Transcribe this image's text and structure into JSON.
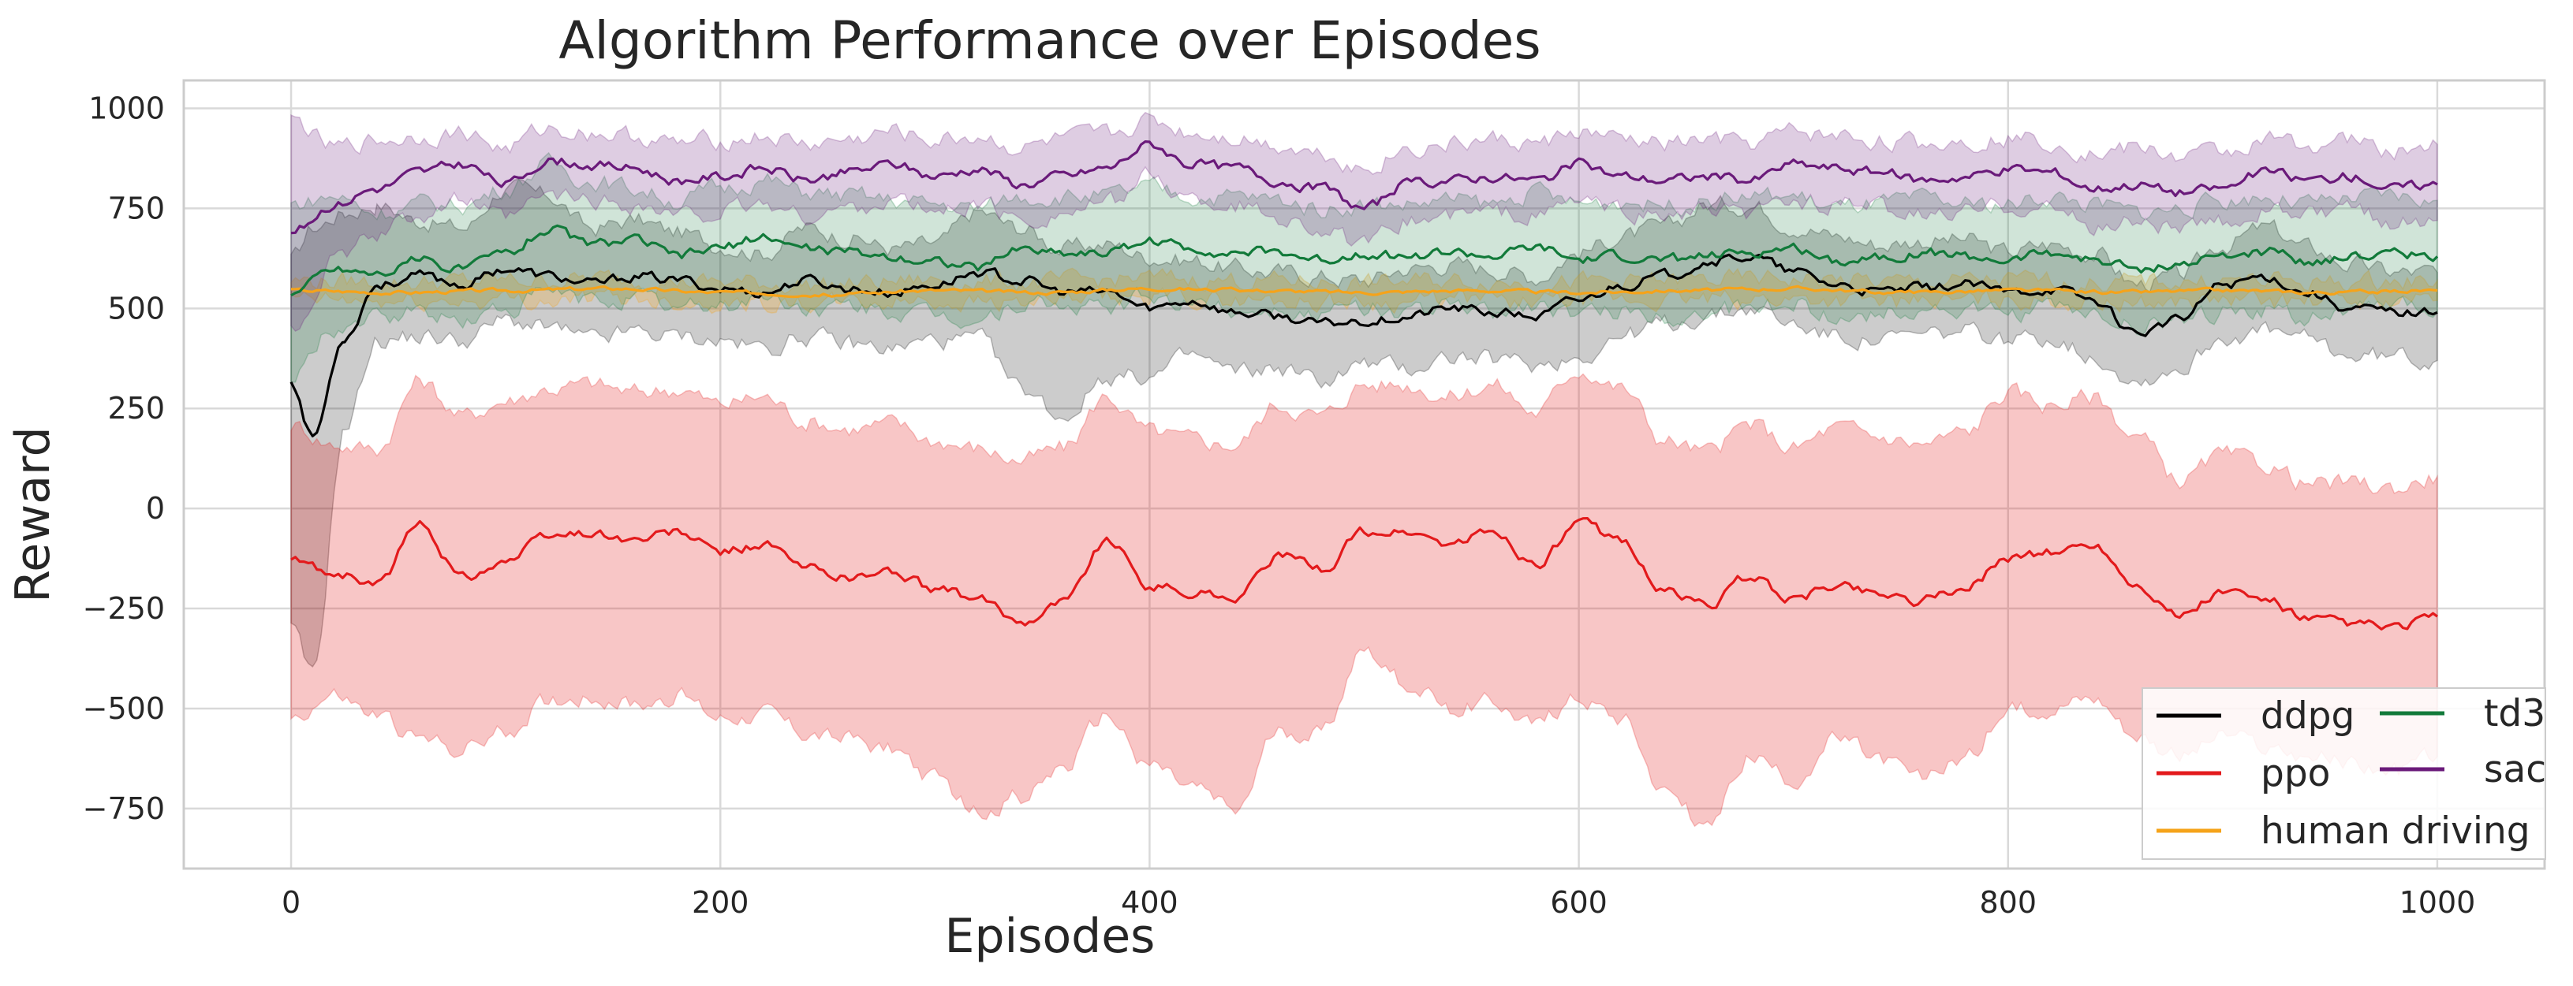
{
  "chart_data": {
    "type": "line",
    "title": "Algorithm Performance over Episodes",
    "xlabel": "Episodes",
    "ylabel": "Reward",
    "xlim": [
      -50,
      1050
    ],
    "ylim": [
      -900,
      1070
    ],
    "xticks": [
      0,
      200,
      400,
      600,
      800,
      1000
    ],
    "yticks": [
      -750,
      -500,
      -250,
      0,
      250,
      500,
      750,
      1000
    ],
    "xtick_labels": [
      "0",
      "200",
      "400",
      "600",
      "800",
      "1000"
    ],
    "ytick_labels": [
      "−750",
      "−500",
      "−250",
      "0",
      "250",
      "500",
      "750",
      "1000"
    ],
    "grid": true,
    "legend_position": "lower-right",
    "series": [
      {
        "name": "ddpg",
        "color": "#000000",
        "band_alpha": 0.2,
        "x": [
          0,
          10,
          25,
          40,
          60,
          80,
          100,
          120,
          140,
          160,
          180,
          200,
          220,
          240,
          260,
          280,
          300,
          320,
          340,
          360,
          380,
          400,
          420,
          440,
          460,
          480,
          500,
          520,
          540,
          560,
          580,
          600,
          620,
          640,
          660,
          680,
          700,
          720,
          740,
          760,
          780,
          800,
          820,
          840,
          860,
          880,
          900,
          920,
          940,
          960,
          980,
          1000
        ],
        "mean": [
          320,
          180,
          430,
          560,
          580,
          560,
          600,
          580,
          560,
          580,
          570,
          550,
          540,
          570,
          550,
          540,
          560,
          590,
          570,
          540,
          540,
          500,
          520,
          490,
          480,
          460,
          470,
          480,
          500,
          490,
          480,
          520,
          560,
          580,
          620,
          630,
          590,
          560,
          540,
          550,
          560,
          540,
          550,
          520,
          440,
          470,
          560,
          580,
          540,
          500,
          490,
          490
        ],
        "upper": [
          620,
          700,
          740,
          760,
          720,
          700,
          800,
          780,
          700,
          720,
          690,
          660,
          640,
          700,
          680,
          650,
          660,
          740,
          700,
          650,
          660,
          630,
          620,
          600,
          590,
          580,
          570,
          600,
          610,
          600,
          580,
          640,
          680,
          700,
          760,
          760,
          710,
          680,
          660,
          670,
          670,
          640,
          660,
          640,
          560,
          580,
          660,
          700,
          650,
          610,
          590,
          590
        ],
        "lower": [
          -300,
          -420,
          200,
          420,
          430,
          420,
          470,
          450,
          420,
          440,
          430,
          420,
          400,
          430,
          410,
          400,
          420,
          420,
          300,
          230,
          330,
          330,
          380,
          340,
          350,
          320,
          360,
          350,
          380,
          370,
          360,
          380,
          430,
          460,
          480,
          500,
          460,
          430,
          420,
          430,
          440,
          420,
          430,
          380,
          320,
          350,
          430,
          440,
          420,
          380,
          380,
          370
        ]
      },
      {
        "name": "ppo",
        "color": "#e31a1c",
        "band_alpha": 0.25,
        "x": [
          0,
          20,
          40,
          60,
          80,
          100,
          120,
          140,
          160,
          180,
          200,
          220,
          240,
          260,
          280,
          300,
          320,
          340,
          360,
          380,
          400,
          420,
          440,
          460,
          480,
          500,
          520,
          540,
          560,
          580,
          600,
          620,
          640,
          660,
          680,
          700,
          720,
          740,
          760,
          780,
          800,
          820,
          840,
          860,
          880,
          900,
          920,
          940,
          960,
          980,
          1000
        ],
        "mean": [
          -130,
          -160,
          -190,
          -40,
          -170,
          -130,
          -70,
          -60,
          -80,
          -60,
          -110,
          -90,
          -150,
          -170,
          -160,
          -200,
          -230,
          -280,
          -230,
          -80,
          -190,
          -210,
          -220,
          -120,
          -150,
          -60,
          -60,
          -90,
          -60,
          -140,
          -40,
          -80,
          -210,
          -240,
          -170,
          -230,
          -190,
          -210,
          -230,
          -200,
          -120,
          -110,
          -90,
          -190,
          -270,
          -210,
          -230,
          -280,
          -290,
          -300,
          -270
        ],
        "upper": [
          210,
          160,
          150,
          320,
          230,
          270,
          300,
          310,
          290,
          300,
          260,
          280,
          220,
          200,
          210,
          170,
          150,
          120,
          150,
          280,
          190,
          170,
          160,
          260,
          230,
          310,
          310,
          280,
          310,
          240,
          350,
          300,
          170,
          140,
          210,
          150,
          200,
          180,
          160,
          190,
          290,
          260,
          280,
          180,
          70,
          130,
          110,
          60,
          60,
          50,
          80
        ],
        "lower": [
          -520,
          -470,
          -520,
          -580,
          -600,
          -560,
          -480,
          -470,
          -490,
          -470,
          -520,
          -510,
          -560,
          -580,
          -600,
          -680,
          -760,
          -720,
          -650,
          -520,
          -640,
          -700,
          -760,
          -560,
          -560,
          -350,
          -440,
          -500,
          -480,
          -540,
          -470,
          -520,
          -700,
          -800,
          -620,
          -680,
          -580,
          -630,
          -680,
          -620,
          -510,
          -490,
          -470,
          -560,
          -620,
          -570,
          -600,
          -620,
          -640,
          -660,
          -620
        ]
      },
      {
        "name": "human driving",
        "color": "#f5a31a",
        "band_alpha": 0.25,
        "x": [
          0,
          50,
          100,
          150,
          200,
          250,
          300,
          350,
          400,
          450,
          500,
          550,
          600,
          650,
          700,
          750,
          800,
          850,
          900,
          950,
          1000
        ],
        "mean": [
          545,
          540,
          545,
          550,
          540,
          535,
          545,
          540,
          550,
          545,
          540,
          545,
          540,
          545,
          550,
          540,
          545,
          540,
          545,
          540,
          545
        ],
        "upper": [
          570,
          565,
          570,
          575,
          565,
          560,
          570,
          565,
          575,
          570,
          565,
          570,
          565,
          570,
          575,
          565,
          570,
          565,
          570,
          565,
          570
        ],
        "lower": [
          520,
          515,
          520,
          525,
          515,
          510,
          520,
          515,
          525,
          520,
          515,
          520,
          515,
          520,
          525,
          515,
          520,
          515,
          520,
          515,
          520
        ]
      },
      {
        "name": "td3",
        "color": "#127a3a",
        "band_alpha": 0.2,
        "x": [
          0,
          20,
          40,
          60,
          80,
          100,
          120,
          140,
          160,
          180,
          200,
          220,
          240,
          260,
          280,
          300,
          320,
          340,
          360,
          380,
          400,
          420,
          440,
          460,
          480,
          500,
          520,
          540,
          560,
          580,
          600,
          620,
          640,
          660,
          680,
          700,
          720,
          740,
          760,
          780,
          800,
          820,
          840,
          860,
          880,
          900,
          920,
          940,
          960,
          980,
          1000
        ],
        "mean": [
          540,
          600,
          590,
          620,
          600,
          640,
          700,
          660,
          670,
          630,
          650,
          680,
          650,
          640,
          630,
          620,
          600,
          650,
          640,
          640,
          670,
          650,
          640,
          640,
          620,
          640,
          630,
          640,
          630,
          650,
          620,
          630,
          620,
          630,
          640,
          650,
          620,
          630,
          640,
          630,
          620,
          640,
          620,
          600,
          610,
          630,
          640,
          620,
          630,
          640,
          630
        ],
        "upper": [
          760,
          780,
          740,
          760,
          760,
          800,
          860,
          820,
          800,
          770,
          800,
          820,
          790,
          780,
          770,
          760,
          750,
          780,
          780,
          780,
          800,
          780,
          780,
          770,
          750,
          760,
          760,
          770,
          760,
          790,
          760,
          770,
          760,
          770,
          780,
          780,
          750,
          760,
          770,
          760,
          760,
          780,
          760,
          740,
          750,
          770,
          780,
          760,
          770,
          780,
          770
        ],
        "lower": [
          320,
          450,
          470,
          490,
          470,
          500,
          540,
          520,
          530,
          500,
          510,
          530,
          500,
          500,
          490,
          480,
          470,
          510,
          500,
          500,
          530,
          510,
          500,
          500,
          480,
          500,
          490,
          500,
          490,
          510,
          480,
          490,
          480,
          490,
          500,
          510,
          480,
          490,
          500,
          490,
          480,
          500,
          480,
          460,
          470,
          490,
          500,
          480,
          490,
          500,
          490
        ]
      },
      {
        "name": "sac",
        "color": "#6a1a7a",
        "band_alpha": 0.22,
        "x": [
          0,
          20,
          40,
          60,
          80,
          100,
          120,
          140,
          160,
          180,
          200,
          220,
          240,
          260,
          280,
          300,
          320,
          340,
          360,
          380,
          400,
          420,
          440,
          460,
          480,
          500,
          520,
          540,
          560,
          580,
          600,
          620,
          640,
          660,
          680,
          700,
          720,
          740,
          760,
          780,
          800,
          820,
          840,
          860,
          880,
          900,
          920,
          940,
          960,
          980,
          1000
        ],
        "mean": [
          690,
          760,
          800,
          840,
          860,
          810,
          870,
          860,
          850,
          820,
          830,
          850,
          820,
          840,
          860,
          830,
          850,
          810,
          830,
          850,
          910,
          860,
          850,
          820,
          800,
          750,
          810,
          820,
          830,
          820,
          860,
          830,
          820,
          830,
          820,
          860,
          850,
          840,
          820,
          830,
          850,
          840,
          800,
          810,
          790,
          800,
          840,
          820,
          830,
          800,
          810
        ],
        "upper": [
          970,
          900,
          920,
          930,
          940,
          900,
          950,
          940,
          930,
          910,
          920,
          930,
          910,
          920,
          940,
          920,
          930,
          900,
          920,
          930,
          970,
          940,
          930,
          910,
          890,
          850,
          900,
          910,
          920,
          910,
          940,
          920,
          910,
          920,
          910,
          940,
          930,
          920,
          910,
          920,
          930,
          920,
          890,
          900,
          880,
          890,
          920,
          910,
          920,
          890,
          910
        ],
        "lower": [
          440,
          620,
          680,
          740,
          770,
          720,
          780,
          770,
          760,
          730,
          740,
          760,
          730,
          750,
          770,
          740,
          760,
          720,
          740,
          760,
          830,
          770,
          760,
          730,
          700,
          650,
          720,
          730,
          740,
          730,
          770,
          740,
          730,
          740,
          730,
          770,
          760,
          750,
          730,
          740,
          760,
          750,
          700,
          720,
          700,
          710,
          750,
          730,
          740,
          720,
          720
        ]
      }
    ],
    "legend": [
      {
        "label": "ddpg",
        "color": "#000000"
      },
      {
        "label": "ppo",
        "color": "#e31a1c"
      },
      {
        "label": "human driving",
        "color": "#f5a31a"
      },
      {
        "label": "td3",
        "color": "#127a3a"
      },
      {
        "label": "sac",
        "color": "#6a1a7a"
      }
    ]
  }
}
